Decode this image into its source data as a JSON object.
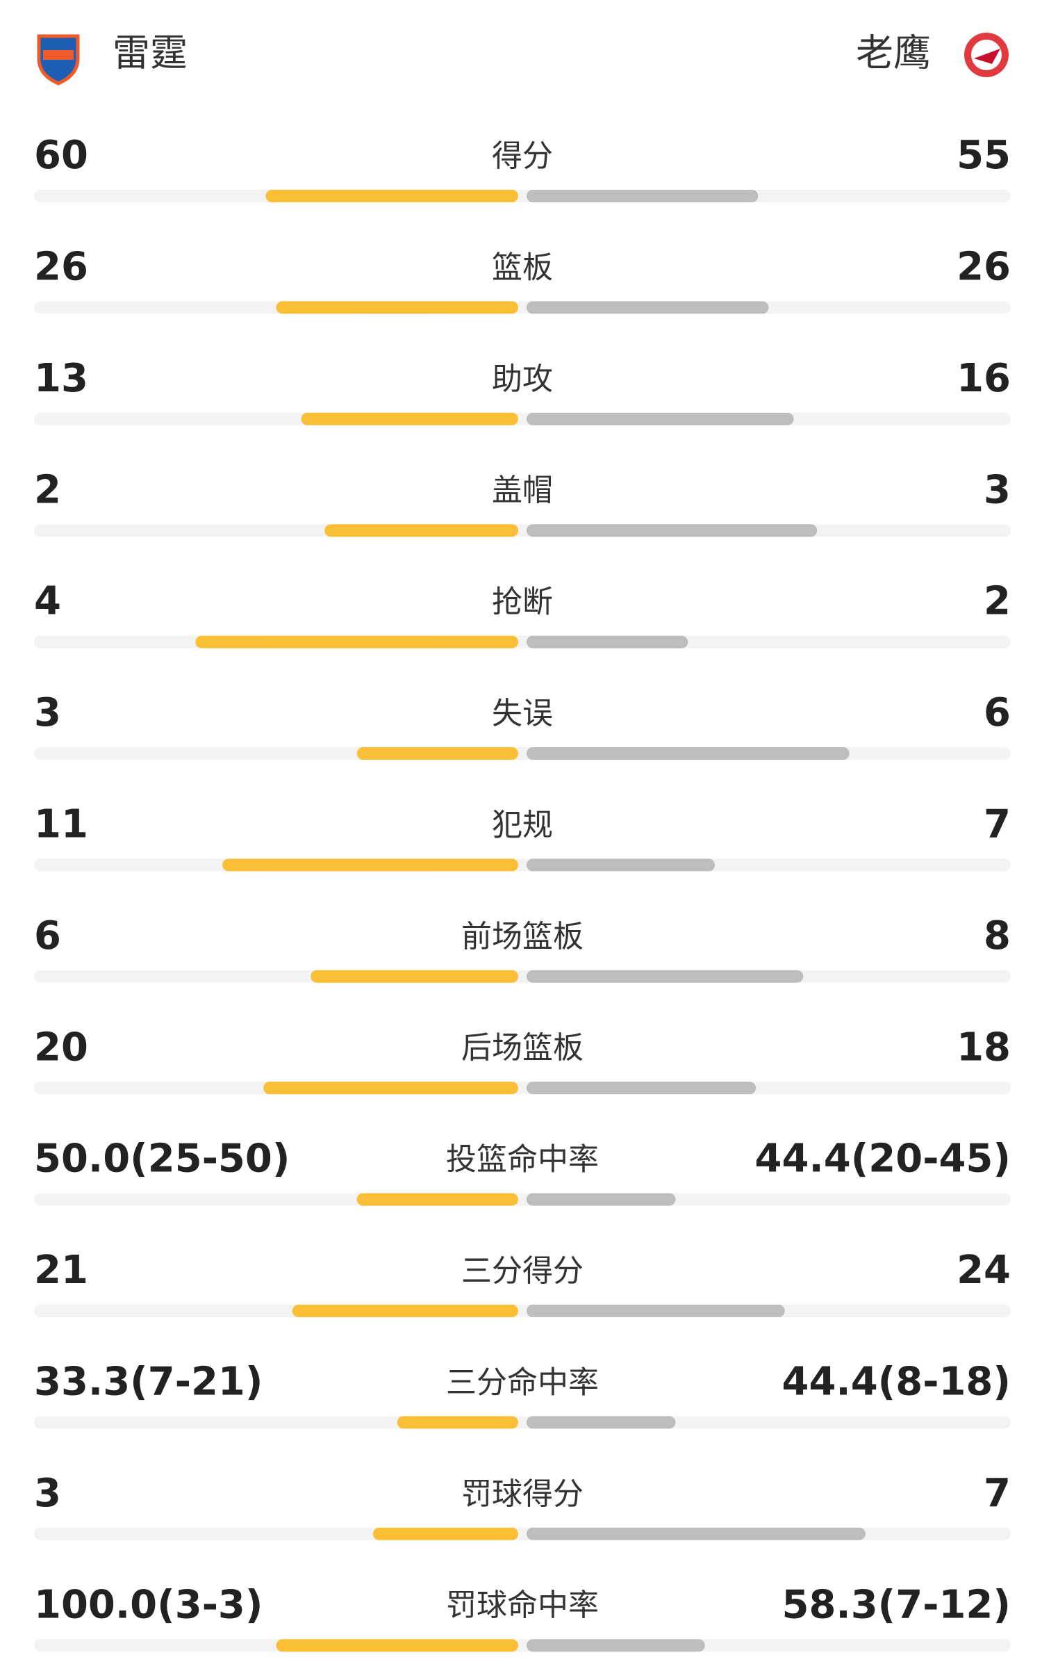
{
  "header": {
    "home": "雷霆",
    "away": "老鹰"
  },
  "rows": [
    {
      "label": "得分",
      "home": 60,
      "away": 55
    },
    {
      "label": "篮板",
      "home": 26,
      "away": 26
    },
    {
      "label": "助攻",
      "home": 13,
      "away": 16
    },
    {
      "label": "盖帽",
      "home": 2,
      "away": 3
    },
    {
      "label": "抢断",
      "home": 4,
      "away": 2
    },
    {
      "label": "失误",
      "home": 3,
      "away": 6
    },
    {
      "label": "犯规",
      "home": 11,
      "away": 7
    },
    {
      "label": "前场篮板",
      "home": 6,
      "away": 8
    },
    {
      "label": "后场篮板",
      "home": 20,
      "away": 18
    },
    {
      "label": "投篮命中率",
      "home": "50.0(25-50)",
      "away": "44.4(20-45)"
    },
    {
      "label": "三分得分",
      "home": 21,
      "away": 24
    },
    {
      "label": "三分命中率",
      "home": "33.3(7-21)",
      "away": "44.4(8-18)"
    },
    {
      "label": "罚球得分",
      "home": 3,
      "away": 7
    },
    {
      "label": "罚球命中率",
      "home": "100.0(3-3)",
      "away": "58.3(7-12)"
    }
  ]
}
